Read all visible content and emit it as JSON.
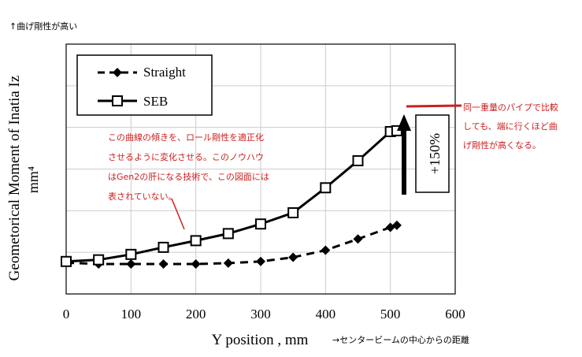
{
  "annotations": {
    "top_note": "↑曲げ剛性が高い",
    "x_note": "→センタービームの中心からの距離",
    "red_left": [
      "この曲線の傾きを、ロール剛性を適正化",
      "させるように変化させる。このノウハウ",
      "はGen2の肝になる技術で、この図面には",
      "表されていない。"
    ],
    "red_right": [
      "同一重量のパイプで比較",
      "しても、端に行くほど曲",
      "げ剛性が高くなる。"
    ],
    "arrow_label": "+150%"
  },
  "colors": {
    "annotation_red": "#cc2020",
    "line": "#000000",
    "grid": "#cccccc"
  },
  "chart_data": {
    "type": "line",
    "title": "",
    "xlabel": "Y position , mm",
    "ylabel_line1": "Geometorical Moment of Inatia Iz",
    "ylabel_line2": "mm⁴",
    "xlim": [
      0,
      600
    ],
    "x_ticks": [
      "0",
      "100",
      "200",
      "300",
      "400",
      "500",
      "600"
    ],
    "ylim": [
      0,
      6
    ],
    "grid": true,
    "legend_position": "top-left",
    "series": [
      {
        "name": "Straight",
        "style": "dashed",
        "marker": "diamond-filled",
        "x": [
          0,
          50,
          100,
          150,
          200,
          250,
          300,
          350,
          400,
          450,
          500,
          510
        ],
        "y": [
          0.75,
          0.72,
          0.72,
          0.72,
          0.72,
          0.74,
          0.78,
          0.88,
          1.05,
          1.32,
          1.6,
          1.65
        ]
      },
      {
        "name": "SEB",
        "style": "solid",
        "marker": "square-open",
        "x": [
          0,
          50,
          100,
          150,
          200,
          250,
          300,
          350,
          400,
          450,
          500,
          510
        ],
        "y": [
          0.78,
          0.82,
          0.95,
          1.12,
          1.28,
          1.45,
          1.68,
          1.95,
          2.55,
          3.2,
          3.9,
          3.92
        ]
      }
    ]
  }
}
